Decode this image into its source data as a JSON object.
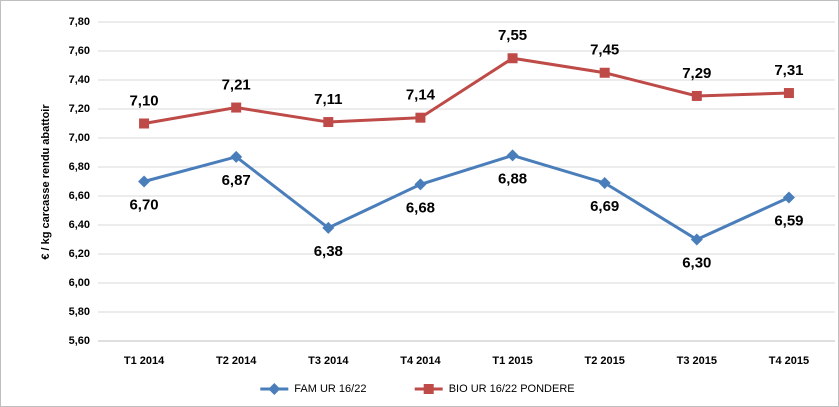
{
  "chart_data": {
    "type": "line",
    "y_label": "€ / kg carcasse rendu abattoir",
    "categories": [
      "T1 2014",
      "T2 2014",
      "T3 2014",
      "T4 2014",
      "T1 2015",
      "T2 2015",
      "T3 2015",
      "T4 2015"
    ],
    "series": [
      {
        "name": "FAM UR 16/22",
        "color": "#4a7ebb",
        "marker": "diamond",
        "label_position": "below",
        "values": [
          6.7,
          6.87,
          6.38,
          6.68,
          6.88,
          6.69,
          6.3,
          6.59
        ],
        "value_labels": [
          "6,70",
          "6,87",
          "6,38",
          "6,68",
          "6,88",
          "6,69",
          "6,30",
          "6,59"
        ]
      },
      {
        "name": "BIO UR 16/22 PONDERE",
        "color": "#be4b48",
        "marker": "square",
        "label_position": "above",
        "values": [
          7.1,
          7.21,
          7.11,
          7.14,
          7.55,
          7.45,
          7.29,
          7.31
        ],
        "value_labels": [
          "7,10",
          "7,21",
          "7,11",
          "7,14",
          "7,55",
          "7,45",
          "7,29",
          "7,31"
        ]
      }
    ],
    "ylim": [
      5.6,
      7.8
    ],
    "yticks": [
      {
        "value": 5.6,
        "label": "5,60"
      },
      {
        "value": 5.8,
        "label": "5,80"
      },
      {
        "value": 6.0,
        "label": "6,00"
      },
      {
        "value": 6.2,
        "label": "6,20"
      },
      {
        "value": 6.4,
        "label": "6,40"
      },
      {
        "value": 6.6,
        "label": "6,60"
      },
      {
        "value": 6.8,
        "label": "6,80"
      },
      {
        "value": 7.0,
        "label": "7,00"
      },
      {
        "value": 7.2,
        "label": "7,20"
      },
      {
        "value": 7.4,
        "label": "7,40"
      },
      {
        "value": 7.6,
        "label": "7,60"
      },
      {
        "value": 7.8,
        "label": "7,80"
      }
    ],
    "grid": true,
    "legend": "bottom"
  }
}
